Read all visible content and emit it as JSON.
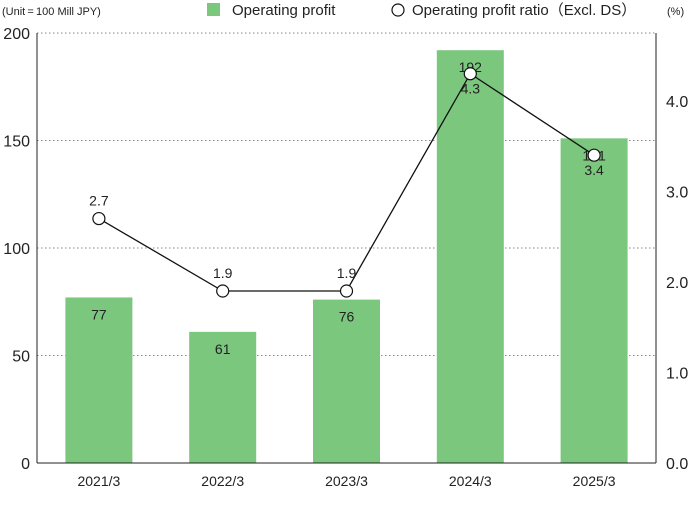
{
  "chart_data": {
    "type": "bar",
    "unit_left": "(Unit = 100 Mill JPY)",
    "unit_right": "(%)",
    "categories": [
      "2021/3",
      "2022/3",
      "2023/3",
      "2024/3",
      "2025/3"
    ],
    "series": [
      {
        "name": "Operating profit",
        "type": "bar",
        "axis": "left",
        "values": [
          77,
          61,
          76,
          192,
          151
        ],
        "labels": [
          "77",
          "61",
          "76",
          "192",
          "151"
        ],
        "color": "#7bc77e"
      },
      {
        "name": "Operating profit ratio（Excl. DS）",
        "type": "line",
        "axis": "right",
        "values": [
          2.7,
          1.9,
          1.9,
          4.3,
          3.4
        ],
        "labels": [
          "2.7",
          "1.9",
          "1.9",
          "4.3",
          "3.4"
        ],
        "color": "#111111"
      }
    ],
    "y_left": {
      "min": 0,
      "max": 200,
      "ticks": [
        0,
        50,
        100,
        150,
        200
      ],
      "tick_labels": [
        "0",
        "50",
        "100",
        "150",
        "200"
      ]
    },
    "y_right": {
      "min": 0,
      "max": 4.75,
      "ticks": [
        0,
        1,
        2,
        3,
        4
      ],
      "tick_labels": [
        "0.0",
        "1.0",
        "2.0",
        "3.0",
        "4.0"
      ]
    },
    "grid": "dotted horizontal",
    "legend": "top"
  }
}
